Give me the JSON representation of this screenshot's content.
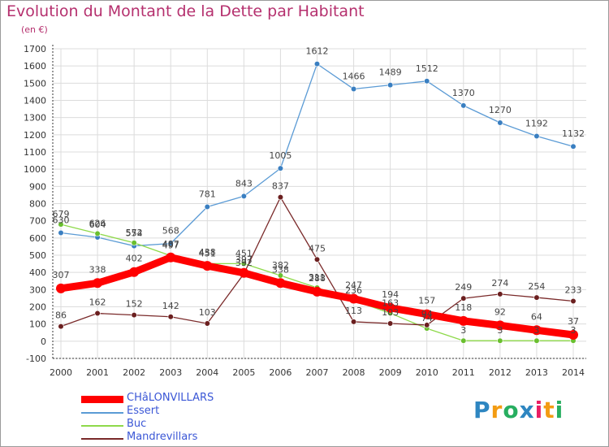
{
  "title": "Evolution du Montant de la Dette par Habitant",
  "subtitle": "(en €)",
  "logo": {
    "text": "Proxiti",
    "letters": [
      "P",
      "r",
      "o",
      "x",
      "i",
      "t",
      "i"
    ],
    "colors": [
      "#2e86c1",
      "#f39c12",
      "#27ae60",
      "#2e86c1",
      "#e91e63",
      "#f39c12",
      "#27ae60"
    ]
  },
  "chart_data": {
    "type": "line",
    "x": [
      "2000",
      "2001",
      "2002",
      "2003",
      "2004",
      "2005",
      "2006",
      "2007",
      "2008",
      "2009",
      "2010",
      "2011",
      "2012",
      "2013",
      "2014"
    ],
    "ylim": [
      -100,
      1700
    ],
    "yticks": [
      -100,
      0,
      100,
      200,
      300,
      400,
      500,
      600,
      700,
      800,
      900,
      1000,
      1100,
      1200,
      1300,
      1400,
      1500,
      1600,
      1700
    ],
    "grid": true,
    "legend_position": "bottom-left",
    "series": [
      {
        "name": "Essert",
        "color": "#5b9bd5",
        "marker": "#3a7fc1",
        "values": [
          630,
          604,
          554,
          568,
          781,
          843,
          1005,
          1612,
          1466,
          1489,
          1512,
          1370,
          1270,
          1192,
          1132
        ]
      },
      {
        "name": "Buc",
        "color": "#8ed94a",
        "marker": "#6abf2f",
        "values": [
          679,
          626,
          572,
          497,
          451,
          451,
          382,
          311,
          236,
          163,
          74,
          3,
          3,
          3,
          3
        ]
      },
      {
        "name": "Mandrevillars",
        "color": "#7a2a2a",
        "marker": "#6b1f1f",
        "values": [
          86,
          162,
          152,
          142,
          103,
          392,
          837,
          475,
          113,
          103,
          94,
          249,
          274,
          254,
          233
        ]
      },
      {
        "name": "CHâLONVILLARS",
        "color": "#ff0000",
        "marker": "#ff0000",
        "values": [
          307,
          338,
          402,
          487,
          438,
          397,
          338,
          288,
          247,
          194,
          157,
          118,
          92,
          64,
          37
        ]
      }
    ],
    "data_labels": {
      "Essert": [
        "630",
        "604",
        "554",
        "568",
        "781",
        "843",
        "1005",
        "1612",
        "1466",
        "1489",
        "1512",
        "1370",
        "1270",
        "1192",
        "1132"
      ],
      "Buc": [
        "679",
        "626",
        "572",
        "497",
        "451",
        "451",
        "382",
        "311",
        "236",
        "163",
        "74",
        "3",
        "3",
        "3",
        "3"
      ],
      "Mandrevillars": [
        "86",
        "162",
        "152",
        "142",
        "103",
        "392",
        "837",
        "475",
        "113",
        "103",
        "94",
        "249",
        "274",
        "254",
        "233"
      ],
      "CHâLONVILLARS": [
        "307",
        "338",
        "402",
        "487",
        "438",
        "397",
        "338",
        "288",
        "247",
        "194",
        "157",
        "118",
        "92",
        "64",
        "37"
      ]
    }
  },
  "legend": [
    {
      "label": "CHâLONVILLARS",
      "color": "#ff0000",
      "thick": true
    },
    {
      "label": "Essert",
      "color": "#5b9bd5",
      "thick": false
    },
    {
      "label": "Buc",
      "color": "#8ed94a",
      "thick": false
    },
    {
      "label": "Mandrevillars",
      "color": "#7a2a2a",
      "thick": false
    }
  ]
}
